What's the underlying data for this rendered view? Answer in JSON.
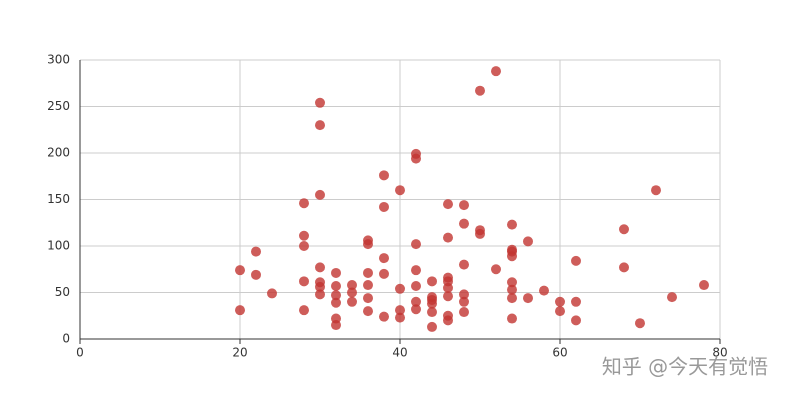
{
  "chart_data": {
    "type": "scatter",
    "x": [
      20,
      20,
      22,
      22,
      24,
      28,
      28,
      28,
      28,
      28,
      30,
      30,
      30,
      30,
      30,
      30,
      30,
      32,
      32,
      32,
      32,
      32,
      32,
      34,
      34,
      34,
      36,
      36,
      36,
      36,
      36,
      36,
      38,
      38,
      38,
      38,
      38,
      40,
      40,
      40,
      40,
      42,
      42,
      42,
      42,
      42,
      42,
      42,
      44,
      44,
      44,
      44,
      44,
      44,
      46,
      46,
      46,
      46,
      46,
      46,
      46,
      46,
      48,
      48,
      48,
      48,
      48,
      48,
      50,
      50,
      50,
      52,
      52,
      54,
      54,
      54,
      54,
      54,
      54,
      54,
      54,
      56,
      56,
      58,
      60,
      60,
      62,
      62,
      62,
      68,
      68,
      70,
      72,
      74,
      78
    ],
    "values": [
      74,
      31,
      94,
      69,
      49,
      146,
      111,
      100,
      62,
      31,
      254,
      230,
      155,
      77,
      61,
      56,
      48,
      71,
      57,
      47,
      39,
      22,
      15,
      58,
      50,
      40,
      106,
      102,
      71,
      58,
      44,
      30,
      176,
      142,
      87,
      70,
      24,
      160,
      54,
      31,
      23,
      199,
      194,
      102,
      74,
      57,
      40,
      32,
      62,
      45,
      42,
      38,
      29,
      13,
      145,
      109,
      66,
      62,
      55,
      46,
      25,
      20,
      144,
      124,
      80,
      48,
      40,
      29,
      267,
      117,
      113,
      288,
      75,
      123,
      96,
      94,
      89,
      61,
      53,
      44,
      22,
      105,
      44,
      52,
      40,
      30,
      84,
      40,
      20,
      118,
      77,
      17,
      160,
      45,
      58
    ],
    "color": "#c23531",
    "xlim": [
      0,
      80
    ],
    "xticks": [
      0,
      20,
      40,
      60,
      80
    ],
    "ylim": [
      0,
      300
    ],
    "yticks": [
      0,
      50,
      100,
      150,
      200,
      250,
      300
    ],
    "grid": true
  },
  "watermark": "知乎 @今天有觉悟"
}
